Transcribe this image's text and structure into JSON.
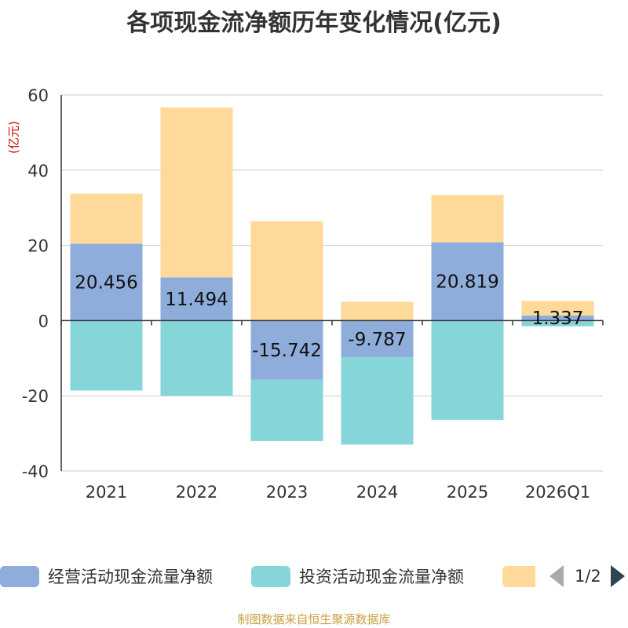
{
  "chart_data": {
    "type": "bar",
    "stacked": true,
    "title": "各项现金流净额历年变化情况(亿元)",
    "ylabel": "(亿元)",
    "ylim": [
      -40,
      60
    ],
    "yticks": [
      -40,
      -20,
      0,
      20,
      40,
      60
    ],
    "categories": [
      "2021",
      "2022",
      "2023",
      "2024",
      "2025",
      "2026Q1"
    ],
    "series": [
      {
        "name": "经营活动现金流量净额",
        "color": "#8eaddb",
        "values": [
          20.456,
          11.494,
          -15.742,
          -9.787,
          20.819,
          1.337
        ],
        "labels": [
          "20.456",
          "11.494",
          "-15.742",
          "-9.787",
          "20.819",
          "1.337"
        ]
      },
      {
        "name": "投资活动现金流量净额",
        "color": "#86d5d8",
        "values": [
          -18.6,
          -20.0,
          -16.3,
          -23.2,
          -26.4,
          -1.5
        ]
      },
      {
        "name": "",
        "color": "#ffd99a",
        "values": [
          13.3,
          45.2,
          26.4,
          5.0,
          12.6,
          3.9
        ]
      }
    ],
    "legend_position": "bottom",
    "pagination": "1/2",
    "source": "制图数据来自恒生聚源数据库"
  }
}
